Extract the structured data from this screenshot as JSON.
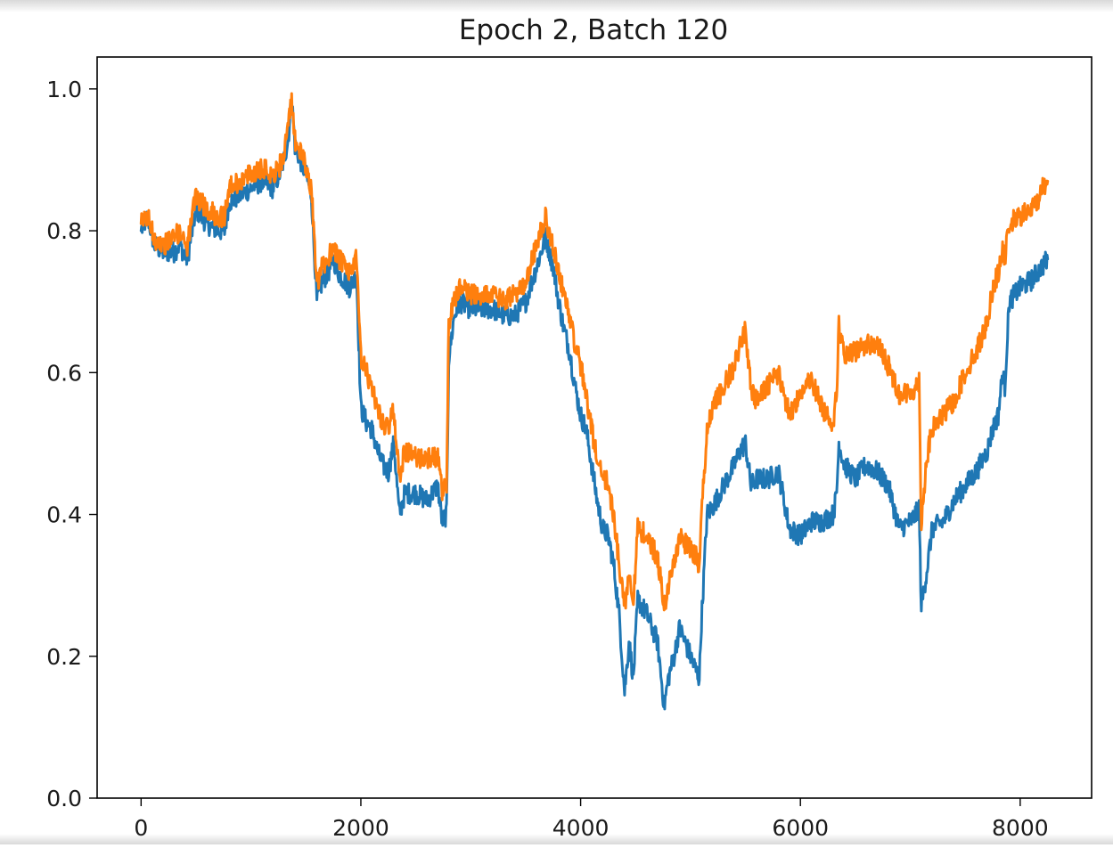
{
  "chart_data": {
    "type": "line",
    "title": "Epoch 2, Batch 120",
    "xlabel": "",
    "ylabel": "",
    "xlim": [
      -400,
      8650
    ],
    "ylim": [
      0.0,
      1.045
    ],
    "x_ticks": [
      0,
      2000,
      4000,
      6000,
      8000
    ],
    "y_ticks": [
      0.0,
      0.2,
      0.4,
      0.6,
      0.8,
      1.0
    ],
    "x_tick_labels": [
      "0",
      "2000",
      "4000",
      "6000",
      "8000"
    ],
    "y_tick_labels": [
      "0.0",
      "0.2",
      "0.4",
      "0.6",
      "0.8",
      "1.0"
    ],
    "grid": false,
    "legend": "none",
    "series": [
      {
        "color": "#1f77b4",
        "x": [
          0,
          60,
          120,
          200,
          300,
          350,
          420,
          500,
          600,
          700,
          760,
          800,
          900,
          1000,
          1100,
          1200,
          1260,
          1300,
          1340,
          1370,
          1400,
          1450,
          1500,
          1550,
          1600,
          1650,
          1700,
          1750,
          1800,
          1900,
          1960,
          2000,
          2050,
          2100,
          2150,
          2200,
          2250,
          2300,
          2350,
          2400,
          2500,
          2600,
          2700,
          2740,
          2780,
          2800,
          2850,
          2900,
          3000,
          3100,
          3200,
          3300,
          3400,
          3500,
          3600,
          3680,
          3700,
          3750,
          3800,
          3850,
          3900,
          3950,
          4000,
          4050,
          4100,
          4150,
          4200,
          4250,
          4300,
          4350,
          4400,
          4440,
          4480,
          4520,
          4600,
          4700,
          4760,
          4800,
          4850,
          4900,
          5000,
          5050,
          5080,
          5100,
          5150,
          5200,
          5300,
          5400,
          5450,
          5500,
          5550,
          5600,
          5700,
          5800,
          5850,
          5900,
          6000,
          6100,
          6200,
          6300,
          6330,
          6350,
          6400,
          6500,
          6600,
          6700,
          6800,
          6900,
          7000,
          7050,
          7080,
          7100,
          7150,
          7200,
          7300,
          7400,
          7500,
          7600,
          7700,
          7750,
          7800,
          7840,
          7860,
          7900,
          8000,
          8100,
          8150,
          8200,
          8250
        ],
        "y": [
          0.8,
          0.82,
          0.78,
          0.77,
          0.77,
          0.78,
          0.76,
          0.83,
          0.81,
          0.8,
          0.8,
          0.84,
          0.85,
          0.86,
          0.87,
          0.86,
          0.88,
          0.9,
          0.93,
          0.99,
          0.92,
          0.9,
          0.88,
          0.85,
          0.7,
          0.73,
          0.74,
          0.76,
          0.74,
          0.72,
          0.74,
          0.55,
          0.53,
          0.52,
          0.49,
          0.47,
          0.46,
          0.5,
          0.4,
          0.43,
          0.43,
          0.42,
          0.44,
          0.39,
          0.4,
          0.62,
          0.68,
          0.7,
          0.69,
          0.69,
          0.69,
          0.68,
          0.68,
          0.7,
          0.75,
          0.79,
          0.78,
          0.75,
          0.7,
          0.66,
          0.63,
          0.58,
          0.54,
          0.52,
          0.47,
          0.42,
          0.38,
          0.37,
          0.33,
          0.26,
          0.15,
          0.22,
          0.17,
          0.28,
          0.26,
          0.22,
          0.13,
          0.17,
          0.2,
          0.24,
          0.2,
          0.18,
          0.17,
          0.25,
          0.4,
          0.41,
          0.44,
          0.47,
          0.49,
          0.5,
          0.44,
          0.45,
          0.45,
          0.46,
          0.42,
          0.38,
          0.37,
          0.39,
          0.39,
          0.4,
          0.43,
          0.5,
          0.47,
          0.45,
          0.47,
          0.46,
          0.44,
          0.38,
          0.39,
          0.4,
          0.41,
          0.27,
          0.32,
          0.38,
          0.39,
          0.42,
          0.44,
          0.46,
          0.49,
          0.52,
          0.54,
          0.6,
          0.58,
          0.7,
          0.72,
          0.73,
          0.74,
          0.75,
          0.76
        ],
        "name": ""
      },
      {
        "color": "#ff7f0e",
        "x": [
          0,
          60,
          120,
          200,
          300,
          350,
          420,
          500,
          600,
          700,
          760,
          800,
          900,
          1000,
          1100,
          1200,
          1260,
          1300,
          1340,
          1370,
          1400,
          1450,
          1500,
          1550,
          1600,
          1650,
          1700,
          1750,
          1800,
          1900,
          1960,
          2000,
          2050,
          2100,
          2150,
          2200,
          2250,
          2300,
          2350,
          2400,
          2500,
          2600,
          2700,
          2740,
          2780,
          2800,
          2850,
          2900,
          3000,
          3100,
          3200,
          3300,
          3400,
          3500,
          3600,
          3680,
          3700,
          3750,
          3800,
          3850,
          3900,
          3950,
          4000,
          4050,
          4100,
          4150,
          4200,
          4250,
          4300,
          4350,
          4400,
          4440,
          4480,
          4520,
          4600,
          4700,
          4760,
          4800,
          4850,
          4900,
          5000,
          5050,
          5080,
          5100,
          5150,
          5200,
          5300,
          5400,
          5450,
          5500,
          5550,
          5600,
          5700,
          5800,
          5850,
          5900,
          6000,
          6100,
          6200,
          6300,
          6330,
          6350,
          6400,
          6500,
          6600,
          6700,
          6800,
          6900,
          7000,
          7050,
          7080,
          7100,
          7150,
          7200,
          7300,
          7400,
          7500,
          7600,
          7700,
          7750,
          7800,
          7840,
          7860,
          7900,
          8000,
          8100,
          8150,
          8200,
          8250
        ],
        "y": [
          0.81,
          0.82,
          0.79,
          0.78,
          0.79,
          0.8,
          0.78,
          0.85,
          0.83,
          0.82,
          0.82,
          0.86,
          0.87,
          0.88,
          0.89,
          0.88,
          0.89,
          0.91,
          0.95,
          0.98,
          0.93,
          0.91,
          0.89,
          0.86,
          0.72,
          0.75,
          0.76,
          0.78,
          0.76,
          0.74,
          0.76,
          0.62,
          0.6,
          0.58,
          0.55,
          0.53,
          0.52,
          0.55,
          0.45,
          0.49,
          0.48,
          0.48,
          0.48,
          0.43,
          0.44,
          0.67,
          0.7,
          0.72,
          0.71,
          0.71,
          0.71,
          0.7,
          0.71,
          0.73,
          0.78,
          0.82,
          0.8,
          0.78,
          0.74,
          0.71,
          0.68,
          0.64,
          0.61,
          0.57,
          0.52,
          0.48,
          0.46,
          0.44,
          0.4,
          0.33,
          0.27,
          0.32,
          0.28,
          0.38,
          0.37,
          0.34,
          0.27,
          0.3,
          0.33,
          0.37,
          0.35,
          0.34,
          0.32,
          0.4,
          0.52,
          0.55,
          0.58,
          0.61,
          0.64,
          0.66,
          0.58,
          0.56,
          0.58,
          0.6,
          0.57,
          0.54,
          0.57,
          0.59,
          0.55,
          0.53,
          0.57,
          0.67,
          0.62,
          0.63,
          0.64,
          0.64,
          0.61,
          0.57,
          0.57,
          0.58,
          0.59,
          0.39,
          0.48,
          0.52,
          0.54,
          0.56,
          0.6,
          0.63,
          0.67,
          0.72,
          0.74,
          0.77,
          0.76,
          0.81,
          0.82,
          0.83,
          0.84,
          0.86,
          0.87
        ],
        "name": ""
      }
    ]
  }
}
